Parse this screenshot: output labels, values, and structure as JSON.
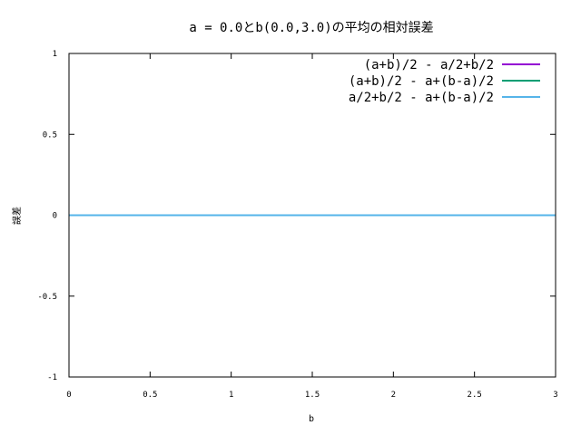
{
  "chart_data": {
    "type": "line",
    "title": "a = 0.0とb(0.0,3.0)の平均の相対誤差",
    "xlabel": "b",
    "ylabel": "誤差",
    "xlim": [
      0,
      3
    ],
    "ylim": [
      -1,
      1
    ],
    "x_ticks": [
      0,
      0.5,
      1,
      1.5,
      2,
      2.5,
      3
    ],
    "x_tick_labels": [
      "0",
      "0.5",
      "1",
      "1.5",
      "2",
      "2.5",
      "3"
    ],
    "y_ticks": [
      -1,
      -0.5,
      0,
      0.5,
      1
    ],
    "y_tick_labels": [
      "-1",
      "-0.5",
      "0",
      "0.5",
      "1"
    ],
    "grid": false,
    "legend_position": "top-right",
    "series": [
      {
        "name": "(a+b)/2 - a/2+b/2",
        "color": "#9400d3",
        "x": [
          0,
          3
        ],
        "y": [
          0,
          0
        ]
      },
      {
        "name": "(a+b)/2 - a+(b-a)/2",
        "color": "#009e73",
        "x": [
          0,
          3
        ],
        "y": [
          0,
          0
        ]
      },
      {
        "name": "a/2+b/2 - a+(b-a)/2",
        "color": "#56b4e9",
        "x": [
          0,
          3
        ],
        "y": [
          0,
          0
        ]
      }
    ]
  }
}
